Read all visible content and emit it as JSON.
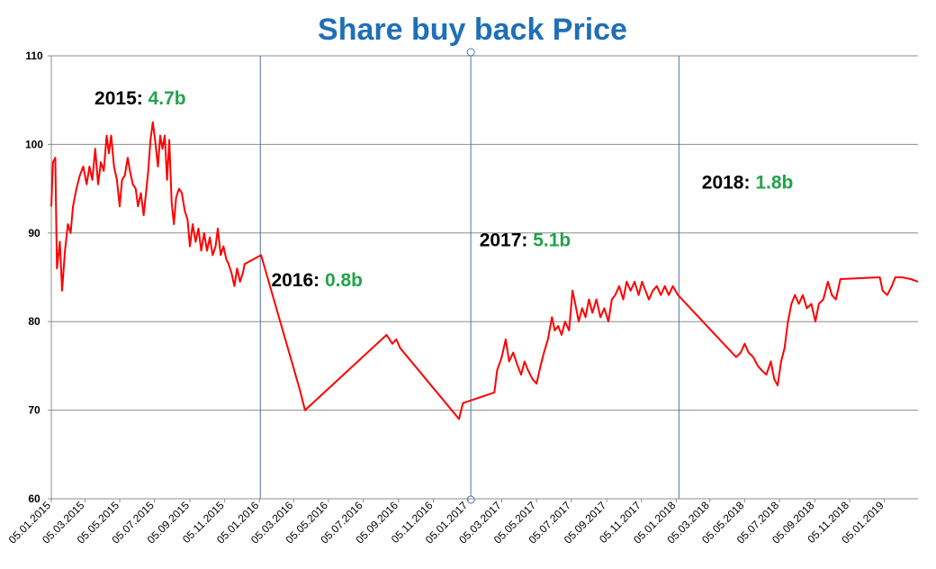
{
  "chart_data": {
    "type": "line",
    "title": "Share buy back Price",
    "xlabel": "",
    "ylabel": "",
    "ylim": [
      60,
      110
    ],
    "yticks": [
      60,
      70,
      80,
      90,
      100,
      110
    ],
    "xlim": [
      "05.01.2015",
      "05.03.2019"
    ],
    "xticks": [
      "05.01.2015",
      "05.03.2015",
      "05.05.2015",
      "05.07.2015",
      "05.09.2015",
      "05.11.2015",
      "05.01.2016",
      "05.03.2016",
      "05.05.2016",
      "05.07.2016",
      "05.09.2016",
      "05.11.2016",
      "05.01.2017",
      "05.03.2017",
      "05.05.2017",
      "05.07.2017",
      "05.09.2017",
      "05.11.2017",
      "05.01.2018",
      "05.03.2018",
      "05.05.2018",
      "05.07.2018",
      "05.09.2018",
      "05.11.2018",
      "05.01.2019"
    ],
    "grid": true,
    "year_dividers": [
      "05.01.2016",
      "05.01.2017",
      "05.01.2018"
    ],
    "line_color": "#ff0000",
    "annotations": [
      {
        "year": "2015:",
        "value": "4.7b",
        "at": [
          "2015-06-10",
          104.5
        ]
      },
      {
        "year": "2016:",
        "value": "0.8b",
        "at": [
          "2016-04-15",
          84
        ]
      },
      {
        "year": "2017:",
        "value": "5.1b",
        "at": [
          "2017-04-15",
          88.5
        ]
      },
      {
        "year": "2018:",
        "value": "1.8b",
        "at": [
          "2018-05-10",
          95
        ]
      }
    ],
    "series": [
      {
        "points": [
          [
            "2015-01-05",
            93.0
          ],
          [
            "2015-01-08",
            98.0
          ],
          [
            "2015-01-12",
            98.5
          ],
          [
            "2015-01-15",
            86.0
          ],
          [
            "2015-01-20",
            89.0
          ],
          [
            "2015-01-24",
            83.5
          ],
          [
            "2015-01-29",
            88.0
          ],
          [
            "2015-02-03",
            91.0
          ],
          [
            "2015-02-08",
            90.0
          ],
          [
            "2015-02-12",
            93.0
          ],
          [
            "2015-02-18",
            95.0
          ],
          [
            "2015-02-24",
            96.5
          ],
          [
            "2015-03-02",
            97.5
          ],
          [
            "2015-03-08",
            95.5
          ],
          [
            "2015-03-13",
            97.5
          ],
          [
            "2015-03-18",
            96.0
          ],
          [
            "2015-03-23",
            99.5
          ],
          [
            "2015-03-28",
            95.5
          ],
          [
            "2015-04-02",
            98.0
          ],
          [
            "2015-04-07",
            97.0
          ],
          [
            "2015-04-12",
            101.0
          ],
          [
            "2015-04-16",
            99.0
          ],
          [
            "2015-04-20",
            101.0
          ],
          [
            "2015-04-25",
            97.5
          ],
          [
            "2015-04-30",
            96.0
          ],
          [
            "2015-05-05",
            93.0
          ],
          [
            "2015-05-09",
            96.0
          ],
          [
            "2015-05-14",
            96.5
          ],
          [
            "2015-05-19",
            98.5
          ],
          [
            "2015-05-23",
            97.0
          ],
          [
            "2015-05-28",
            95.5
          ],
          [
            "2015-06-02",
            95.0
          ],
          [
            "2015-06-06",
            93.0
          ],
          [
            "2015-06-11",
            94.5
          ],
          [
            "2015-06-16",
            92.0
          ],
          [
            "2015-06-20",
            94.5
          ],
          [
            "2015-06-24",
            97.0
          ],
          [
            "2015-06-28",
            100.5
          ],
          [
            "2015-07-02",
            102.5
          ],
          [
            "2015-07-06",
            100.5
          ],
          [
            "2015-07-11",
            97.5
          ],
          [
            "2015-07-15",
            101.0
          ],
          [
            "2015-07-19",
            99.5
          ],
          [
            "2015-07-23",
            101.0
          ],
          [
            "2015-07-27",
            96.0
          ],
          [
            "2015-07-31",
            100.5
          ],
          [
            "2015-08-04",
            93.5
          ],
          [
            "2015-08-08",
            91.0
          ],
          [
            "2015-08-12",
            94.0
          ],
          [
            "2015-08-17",
            95.0
          ],
          [
            "2015-08-22",
            94.5
          ],
          [
            "2015-08-27",
            92.5
          ],
          [
            "2015-09-01",
            91.5
          ],
          [
            "2015-09-05",
            88.5
          ],
          [
            "2015-09-10",
            91.0
          ],
          [
            "2015-09-15",
            89.0
          ],
          [
            "2015-09-20",
            90.5
          ],
          [
            "2015-09-25",
            88.0
          ],
          [
            "2015-09-30",
            90.0
          ],
          [
            "2015-10-05",
            88.0
          ],
          [
            "2015-10-10",
            89.5
          ],
          [
            "2015-10-15",
            87.5
          ],
          [
            "2015-10-20",
            88.5
          ],
          [
            "2015-10-24",
            90.5
          ],
          [
            "2015-10-29",
            87.5
          ],
          [
            "2015-11-03",
            88.5
          ],
          [
            "2015-11-08",
            87.0
          ],
          [
            "2015-11-12",
            86.5
          ],
          [
            "2015-11-17",
            85.5
          ],
          [
            "2015-11-22",
            84.0
          ],
          [
            "2015-11-27",
            86.0
          ],
          [
            "2015-12-02",
            84.5
          ],
          [
            "2015-12-07",
            85.5
          ],
          [
            "2015-12-10",
            86.5
          ],
          [
            "2016-01-08",
            87.5
          ],
          [
            "2016-03-15",
            72.5
          ],
          [
            "2016-03-25",
            70.0
          ],
          [
            "2016-08-15",
            78.5
          ],
          [
            "2016-08-25",
            77.5
          ],
          [
            "2016-09-01",
            78.0
          ],
          [
            "2016-09-08",
            77.0
          ],
          [
            "2016-12-20",
            69.0
          ],
          [
            "2016-12-27",
            70.8
          ],
          [
            "2017-02-20",
            72.0
          ],
          [
            "2017-02-25",
            74.5
          ],
          [
            "2017-03-05",
            76.0
          ],
          [
            "2017-03-12",
            78.0
          ],
          [
            "2017-03-18",
            75.5
          ],
          [
            "2017-03-25",
            76.5
          ],
          [
            "2017-04-02",
            75.0
          ],
          [
            "2017-04-08",
            74.0
          ],
          [
            "2017-04-14",
            75.5
          ],
          [
            "2017-04-20",
            74.5
          ],
          [
            "2017-04-28",
            73.5
          ],
          [
            "2017-05-05",
            73.0
          ],
          [
            "2017-05-12",
            75.0
          ],
          [
            "2017-05-18",
            76.5
          ],
          [
            "2017-05-25",
            78.0
          ],
          [
            "2017-06-01",
            80.5
          ],
          [
            "2017-06-06",
            79.0
          ],
          [
            "2017-06-12",
            79.5
          ],
          [
            "2017-06-18",
            78.5
          ],
          [
            "2017-06-24",
            80.0
          ],
          [
            "2017-07-01",
            79.0
          ],
          [
            "2017-07-07",
            83.5
          ],
          [
            "2017-07-12",
            82.0
          ],
          [
            "2017-07-18",
            80.0
          ],
          [
            "2017-07-24",
            81.5
          ],
          [
            "2017-07-30",
            80.5
          ],
          [
            "2017-08-05",
            82.5
          ],
          [
            "2017-08-11",
            81.0
          ],
          [
            "2017-08-18",
            82.5
          ],
          [
            "2017-08-25",
            80.5
          ],
          [
            "2017-09-01",
            81.5
          ],
          [
            "2017-09-08",
            80.0
          ],
          [
            "2017-09-14",
            82.5
          ],
          [
            "2017-09-20",
            83.0
          ],
          [
            "2017-09-27",
            84.0
          ],
          [
            "2017-10-04",
            82.5
          ],
          [
            "2017-10-10",
            84.5
          ],
          [
            "2017-10-17",
            83.5
          ],
          [
            "2017-10-24",
            84.5
          ],
          [
            "2017-10-31",
            83.0
          ],
          [
            "2017-11-06",
            84.5
          ],
          [
            "2017-11-12",
            83.5
          ],
          [
            "2017-11-18",
            82.5
          ],
          [
            "2017-11-25",
            83.5
          ],
          [
            "2017-12-02",
            84.0
          ],
          [
            "2017-12-09",
            83.0
          ],
          [
            "2017-12-16",
            84.0
          ],
          [
            "2017-12-23",
            83.0
          ],
          [
            "2017-12-30",
            84.0
          ],
          [
            "2018-01-08",
            83.0
          ],
          [
            "2018-04-20",
            76.0
          ],
          [
            "2018-04-28",
            76.5
          ],
          [
            "2018-05-05",
            77.5
          ],
          [
            "2018-05-12",
            76.5
          ],
          [
            "2018-05-20",
            76.0
          ],
          [
            "2018-05-28",
            75.0
          ],
          [
            "2018-06-04",
            74.5
          ],
          [
            "2018-06-12",
            74.0
          ],
          [
            "2018-06-20",
            75.5
          ],
          [
            "2018-06-26",
            73.5
          ],
          [
            "2018-07-02",
            72.8
          ],
          [
            "2018-07-08",
            75.5
          ],
          [
            "2018-07-14",
            77.0
          ],
          [
            "2018-07-20",
            80.0
          ],
          [
            "2018-07-26",
            82.0
          ],
          [
            "2018-08-01",
            83.0
          ],
          [
            "2018-08-08",
            82.0
          ],
          [
            "2018-08-15",
            83.0
          ],
          [
            "2018-08-22",
            81.5
          ],
          [
            "2018-08-30",
            82.0
          ],
          [
            "2018-09-06",
            80.0
          ],
          [
            "2018-09-12",
            82.0
          ],
          [
            "2018-09-20",
            82.5
          ],
          [
            "2018-09-28",
            84.5
          ],
          [
            "2018-10-05",
            83.0
          ],
          [
            "2018-10-12",
            82.5
          ],
          [
            "2018-10-20",
            84.8
          ],
          [
            "2018-12-28",
            85.0
          ],
          [
            "2019-01-02",
            83.5
          ],
          [
            "2019-01-10",
            83.0
          ],
          [
            "2019-01-18",
            84.0
          ],
          [
            "2019-01-24",
            85.0
          ],
          [
            "2019-02-05",
            85.0
          ],
          [
            "2019-02-20",
            84.8
          ],
          [
            "2019-03-05",
            84.5
          ]
        ]
      }
    ]
  }
}
